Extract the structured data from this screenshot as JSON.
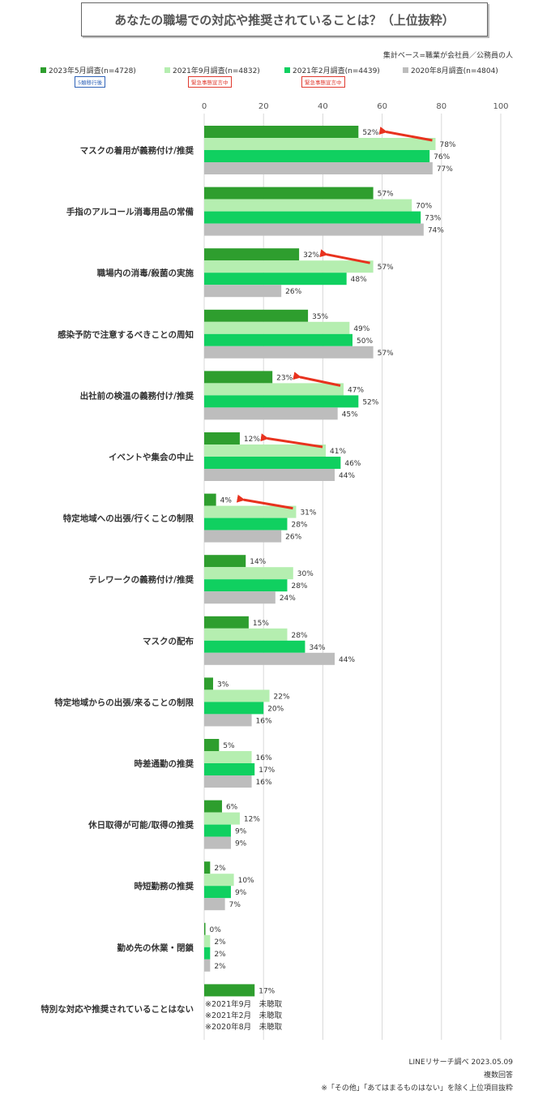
{
  "title": "あなたの職場での対応や推奨されていることは？（上位抜粋）",
  "base_note": "集計ベース=職業が会社員／公務員の人",
  "legend": [
    {
      "label": "2023年5月調査(n=4728)",
      "color": "#2e9e2e",
      "tag": "5類移行後",
      "tag_style": "blue"
    },
    {
      "label": "2021年9月調査(n=4832)",
      "color": "#b5eeb0",
      "tag": "緊急事態宣言中",
      "tag_style": "red"
    },
    {
      "label": "2021年2月調査(n=4439)",
      "color": "#10d060",
      "tag": "緊急事態宣言中",
      "tag_style": "red"
    },
    {
      "label": "2020年8月調査(n=4804)",
      "color": "#bdbdbd",
      "tag": "",
      "tag_style": ""
    }
  ],
  "chart_data": {
    "type": "bar",
    "orientation": "horizontal",
    "xlim": [
      0,
      100
    ],
    "xticks": [
      0,
      20,
      40,
      60,
      80,
      100
    ],
    "grid": true,
    "legend_position": "top",
    "value_suffix": "%",
    "categories": [
      "マスクの着用が義務付け/推奨",
      "手指のアルコール消毒用品の常備",
      "職場内の消毒/殺菌の実施",
      "感染予防で注意するべきことの周知",
      "出社前の検温の義務付け/推奨",
      "イベントや集会の中止",
      "特定地域への出張/行くことの制限",
      "テレワークの義務付け/推奨",
      "マスクの配布",
      "特定地域からの出張/来ることの制限",
      "時差通勤の推奨",
      "休日取得が可能/取得の推奨",
      "時短勤務の推奨",
      "勤め先の休業・閉鎖",
      "特別な対応や推奨されていることはない"
    ],
    "series": [
      {
        "name": "2023年5月調査(n=4728)",
        "color": "#2e9e2e",
        "values": [
          52,
          57,
          32,
          35,
          23,
          12,
          4,
          14,
          15,
          3,
          5,
          6,
          2,
          0,
          17
        ]
      },
      {
        "name": "2021年9月調査(n=4832)",
        "color": "#b5eeb0",
        "values": [
          78,
          70,
          57,
          49,
          47,
          41,
          31,
          30,
          28,
          22,
          16,
          12,
          10,
          2,
          null
        ]
      },
      {
        "name": "2021年2月調査(n=4439)",
        "color": "#10d060",
        "values": [
          76,
          73,
          48,
          50,
          52,
          46,
          28,
          28,
          34,
          20,
          17,
          9,
          9,
          2,
          null
        ]
      },
      {
        "name": "2020年8月調査(n=4804)",
        "color": "#bdbdbd",
        "values": [
          77,
          74,
          26,
          57,
          45,
          44,
          26,
          24,
          44,
          16,
          16,
          9,
          7,
          2,
          null
        ]
      }
    ],
    "arrows_from_series1_to_series0_categories": [
      0,
      2,
      4,
      5,
      6
    ],
    "not_asked_notes": [
      "※2021年9月　未聴取",
      "※2021年2月　未聴取",
      "※2020年8月　未聴取"
    ]
  },
  "footer": {
    "source": "LINEリサーチ調べ 2023.05.09",
    "multi": "複数回答",
    "note": "※「その他」「あてはまるものはない」を除く上位項目抜粋"
  }
}
